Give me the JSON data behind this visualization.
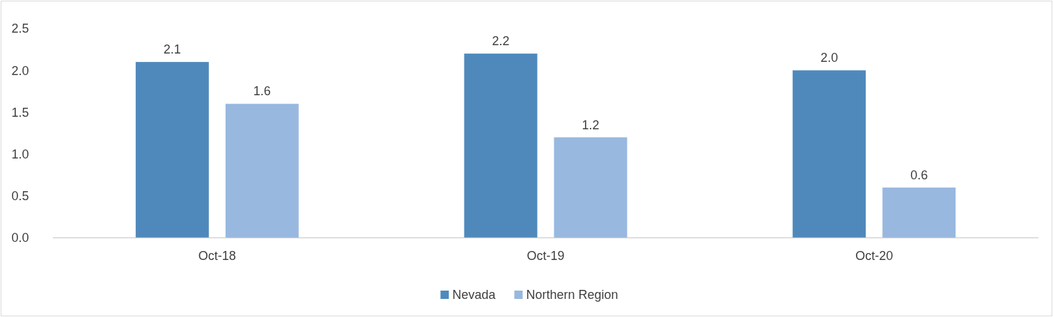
{
  "chart_data": {
    "type": "bar",
    "categories": [
      "Oct-18",
      "Oct-19",
      "Oct-20"
    ],
    "series": [
      {
        "name": "Nevada",
        "color": "#4f89bc",
        "values": [
          2.1,
          2.2,
          2.0
        ],
        "value_labels": [
          "2.1",
          "2.2",
          "2.0"
        ]
      },
      {
        "name": "Northern Region",
        "color": "#98b8df",
        "values": [
          1.6,
          1.2,
          0.6
        ],
        "value_labels": [
          "1.6",
          "1.2",
          "0.6"
        ]
      }
    ],
    "ylim": [
      0,
      2.5
    ],
    "yticks": [
      {
        "value": 0,
        "label": "0.0"
      },
      {
        "value": 0.5,
        "label": "0.5"
      },
      {
        "value": 1,
        "label": "1.0"
      },
      {
        "value": 1.5,
        "label": "1.5"
      },
      {
        "value": 2,
        "label": "2.0"
      },
      {
        "value": 2.5,
        "label": "2.5"
      }
    ],
    "grid": false,
    "legend": "bottom"
  }
}
